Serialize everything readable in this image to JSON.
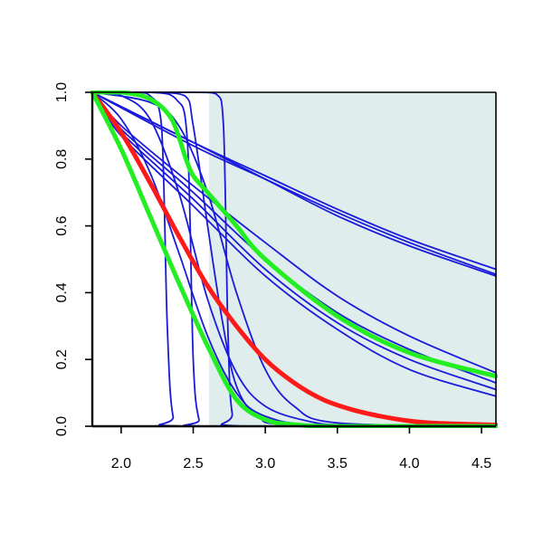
{
  "chart_data": {
    "type": "line",
    "title": "",
    "xlabel": "",
    "ylabel": "",
    "xlim": [
      1.8,
      4.6
    ],
    "ylim": [
      0,
      1
    ],
    "x_ticks": [
      2.0,
      2.5,
      3.0,
      3.5,
      4.0,
      4.5
    ],
    "x_tick_labels": [
      "2.0",
      "2.5",
      "3.0",
      "3.5",
      "4.0",
      "4.5"
    ],
    "y_ticks": [
      0.0,
      0.2,
      0.4,
      0.6,
      0.8,
      1.0
    ],
    "y_tick_labels": [
      "0.0",
      "0.2",
      "0.4",
      "0.6",
      "0.8",
      "1.0"
    ],
    "grid": false,
    "legend": "none",
    "shaded_region": {
      "x_from": 2.61,
      "x_to": 4.6,
      "color": "#e0eded"
    },
    "colors": {
      "thin": "#1a1adb",
      "red": "#ff1a1a",
      "green": "#22ee22",
      "shade": "#e0eded",
      "axis": "#000000"
    },
    "series": [
      {
        "color": "blue",
        "width": "thin",
        "x": [
          1.8,
          2.5,
          3.0,
          3.5,
          4.0,
          4.6
        ],
        "y": [
          1.0,
          0.85,
          0.75,
          0.65,
          0.56,
          0.47
        ]
      },
      {
        "color": "blue",
        "width": "thin",
        "x": [
          1.8,
          2.5,
          3.0,
          3.5,
          4.0,
          4.6
        ],
        "y": [
          1.0,
          0.84,
          0.74,
          0.64,
          0.55,
          0.455
        ]
      },
      {
        "color": "blue",
        "width": "thin",
        "x": [
          1.8,
          2.5,
          3.0,
          3.5,
          4.0,
          4.6
        ],
        "y": [
          1.0,
          0.85,
          0.74,
          0.63,
          0.54,
          0.45
        ]
      },
      {
        "color": "blue",
        "width": "thin",
        "x": [
          1.8,
          2.0,
          2.5,
          3.0,
          3.5,
          4.0,
          4.6
        ],
        "y": [
          1.0,
          0.9,
          0.72,
          0.55,
          0.39,
          0.27,
          0.16
        ]
      },
      {
        "color": "blue",
        "width": "thin",
        "x": [
          1.8,
          2.0,
          2.5,
          3.0,
          3.5,
          4.0,
          4.6
        ],
        "y": [
          1.0,
          0.89,
          0.7,
          0.5,
          0.34,
          0.23,
          0.13
        ]
      },
      {
        "color": "blue",
        "width": "thin",
        "x": [
          1.8,
          2.0,
          2.5,
          3.0,
          3.5,
          4.0,
          4.6
        ],
        "y": [
          1.0,
          0.88,
          0.68,
          0.47,
          0.31,
          0.2,
          0.11
        ]
      },
      {
        "color": "blue",
        "width": "thin",
        "x": [
          1.8,
          2.0,
          2.5,
          3.0,
          3.5,
          4.0,
          4.6
        ],
        "y": [
          1.0,
          0.87,
          0.66,
          0.45,
          0.29,
          0.17,
          0.09
        ]
      },
      {
        "color": "blue",
        "width": "thin",
        "x": [
          1.8,
          2.0,
          2.2,
          2.4,
          2.6,
          2.8,
          3.0,
          3.3,
          3.6,
          4.6
        ],
        "y": [
          1.0,
          0.99,
          0.92,
          0.7,
          0.38,
          0.16,
          0.06,
          0.015,
          0.003,
          0.0
        ]
      },
      {
        "color": "blue",
        "width": "thin",
        "x": [
          1.8,
          2.2,
          2.4,
          2.6,
          2.8,
          3.0,
          3.2,
          3.5,
          4.6
        ],
        "y": [
          1.0,
          0.97,
          0.9,
          0.7,
          0.4,
          0.17,
          0.06,
          0.01,
          0.0
        ]
      },
      {
        "color": "blue",
        "width": "thin",
        "x": [
          1.8,
          2.1,
          2.2,
          2.28,
          2.32,
          2.36,
          2.45,
          4.6
        ],
        "y": [
          1.0,
          1.0,
          0.99,
          0.9,
          0.3,
          0.03,
          0.0,
          0.0
        ]
      },
      {
        "color": "blue",
        "width": "thin",
        "x": [
          1.8,
          2.2,
          2.38,
          2.46,
          2.5,
          2.54,
          2.6,
          4.6
        ],
        "y": [
          1.0,
          1.0,
          0.98,
          0.85,
          0.2,
          0.02,
          0.0,
          0.0
        ]
      },
      {
        "color": "blue",
        "width": "thin",
        "x": [
          1.8,
          2.2,
          2.44,
          2.5,
          2.6,
          2.7,
          2.8,
          2.95,
          3.2,
          4.6
        ],
        "y": [
          1.0,
          1.0,
          0.99,
          0.9,
          0.6,
          0.32,
          0.12,
          0.03,
          0.005,
          0.0
        ]
      },
      {
        "color": "blue",
        "width": "thin",
        "x": [
          1.8,
          2.5,
          2.66,
          2.71,
          2.74,
          2.77,
          2.85,
          4.6
        ],
        "y": [
          1.0,
          1.0,
          0.995,
          0.9,
          0.3,
          0.04,
          0.0,
          0.0
        ]
      },
      {
        "color": "blue",
        "width": "thin",
        "x": [
          1.8,
          2.0,
          2.2,
          2.4,
          2.6,
          2.8,
          3.0,
          3.4,
          4.6
        ],
        "y": [
          1.0,
          0.92,
          0.76,
          0.52,
          0.27,
          0.1,
          0.03,
          0.003,
          0.0
        ]
      },
      {
        "color": "red",
        "width": "thick",
        "x": [
          1.8,
          2.0,
          2.2,
          2.4,
          2.6,
          2.8,
          3.0,
          3.2,
          3.4,
          3.6,
          3.8,
          4.0,
          4.2,
          4.6
        ],
        "y": [
          1.0,
          0.88,
          0.73,
          0.57,
          0.42,
          0.3,
          0.2,
          0.13,
          0.08,
          0.05,
          0.03,
          0.016,
          0.009,
          0.004
        ]
      },
      {
        "color": "green",
        "width": "thick",
        "x": [
          1.8,
          2.0,
          2.2,
          2.4,
          2.6,
          2.8,
          3.0,
          3.2,
          3.5,
          4.6
        ],
        "y": [
          1.0,
          0.83,
          0.63,
          0.43,
          0.24,
          0.08,
          0.02,
          0.005,
          0.0,
          0.0
        ]
      },
      {
        "color": "green",
        "width": "thick",
        "x": [
          1.8,
          2.0,
          2.2,
          2.35,
          2.45,
          2.5,
          2.6,
          2.8,
          3.0,
          3.5,
          4.0,
          4.6
        ],
        "y": [
          1.0,
          1.0,
          0.98,
          0.92,
          0.8,
          0.75,
          0.7,
          0.6,
          0.5,
          0.33,
          0.22,
          0.15
        ]
      }
    ]
  }
}
